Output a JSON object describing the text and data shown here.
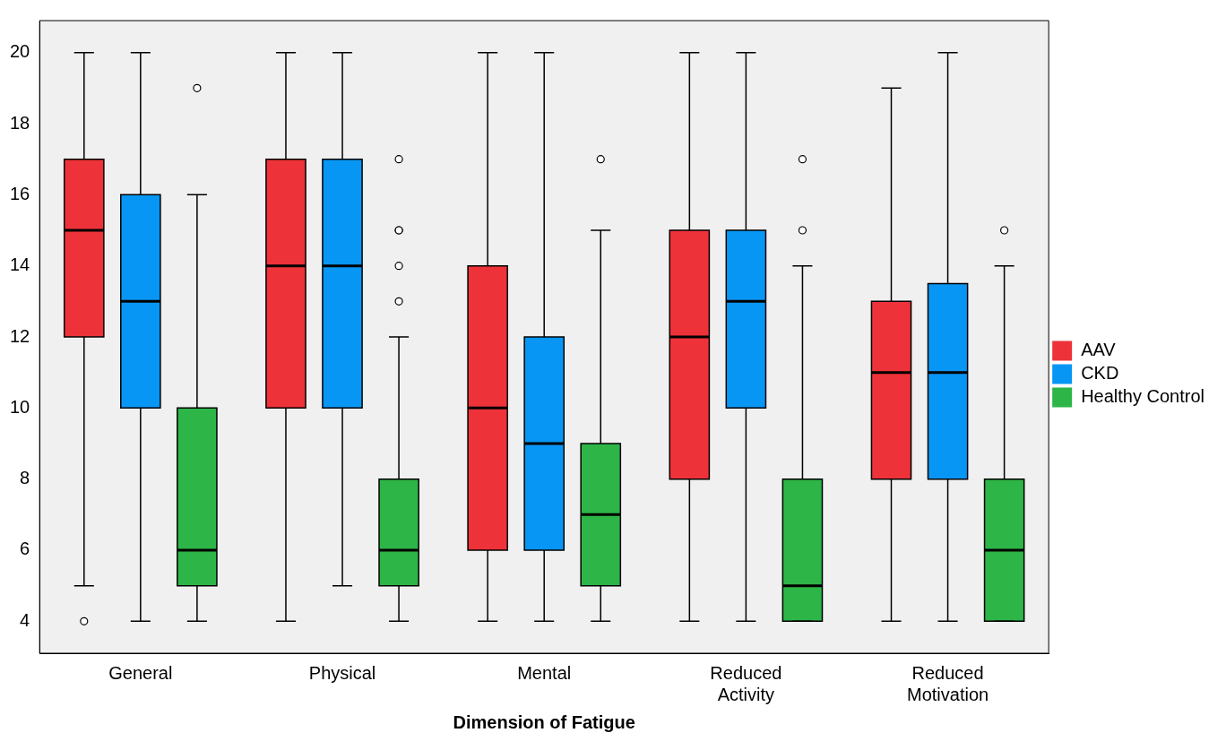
{
  "chart_data": {
    "type": "box",
    "xlabel": "Dimension of Fatigue",
    "categories": [
      "General",
      "Physical",
      "Mental",
      "Reduced Activity",
      "Reduced Motivation"
    ],
    "ylim": [
      3.1,
      20.9
    ],
    "yticks": [
      4,
      6,
      8,
      10,
      12,
      14,
      16,
      18,
      20
    ],
    "grid": false,
    "legend": "right",
    "series": [
      {
        "name": "AAV",
        "color": "#ee3239",
        "boxes": [
          {
            "low": 5,
            "q1": 12,
            "median": 15,
            "q3": 17,
            "high": 20,
            "outliers": [
              4
            ]
          },
          {
            "low": 4,
            "q1": 10,
            "median": 14,
            "q3": 17,
            "high": 20
          },
          {
            "low": 4,
            "q1": 6,
            "median": 10,
            "q3": 14,
            "high": 20
          },
          {
            "low": 4,
            "q1": 8,
            "median": 12,
            "q3": 15,
            "high": 20
          },
          {
            "low": 4,
            "q1": 8,
            "median": 11,
            "q3": 13,
            "high": 19
          }
        ]
      },
      {
        "name": "CKD",
        "color": "#0896f5",
        "boxes": [
          {
            "low": 4,
            "q1": 10,
            "median": 13,
            "q3": 16,
            "high": 20
          },
          {
            "low": 5,
            "q1": 10,
            "median": 14,
            "q3": 17,
            "high": 20
          },
          {
            "low": 4,
            "q1": 6,
            "median": 9,
            "q3": 12,
            "high": 20
          },
          {
            "low": 4,
            "q1": 10,
            "median": 13,
            "q3": 15,
            "high": 20
          },
          {
            "low": 4,
            "q1": 8,
            "median": 11,
            "q3": 13.5,
            "high": 20
          }
        ]
      },
      {
        "name": "Healthy Control",
        "color": "#2db547",
        "boxes": [
          {
            "low": 4,
            "q1": 5,
            "median": 6,
            "q3": 10,
            "high": 16,
            "outliers": [
              19
            ]
          },
          {
            "low": 4,
            "q1": 5,
            "median": 6,
            "q3": 8,
            "high": 12,
            "outliers": [
              13,
              14,
              15,
              15,
              17
            ]
          },
          {
            "low": 4,
            "q1": 5,
            "median": 7,
            "q3": 9,
            "high": 15,
            "outliers": [
              17
            ]
          },
          {
            "low": 4,
            "q1": 4,
            "median": 5,
            "q3": 8,
            "high": 14,
            "outliers": [
              15,
              17
            ]
          },
          {
            "low": 4,
            "q1": 4,
            "median": 6,
            "q3": 8,
            "high": 14,
            "outliers": [
              15
            ]
          }
        ]
      }
    ]
  }
}
